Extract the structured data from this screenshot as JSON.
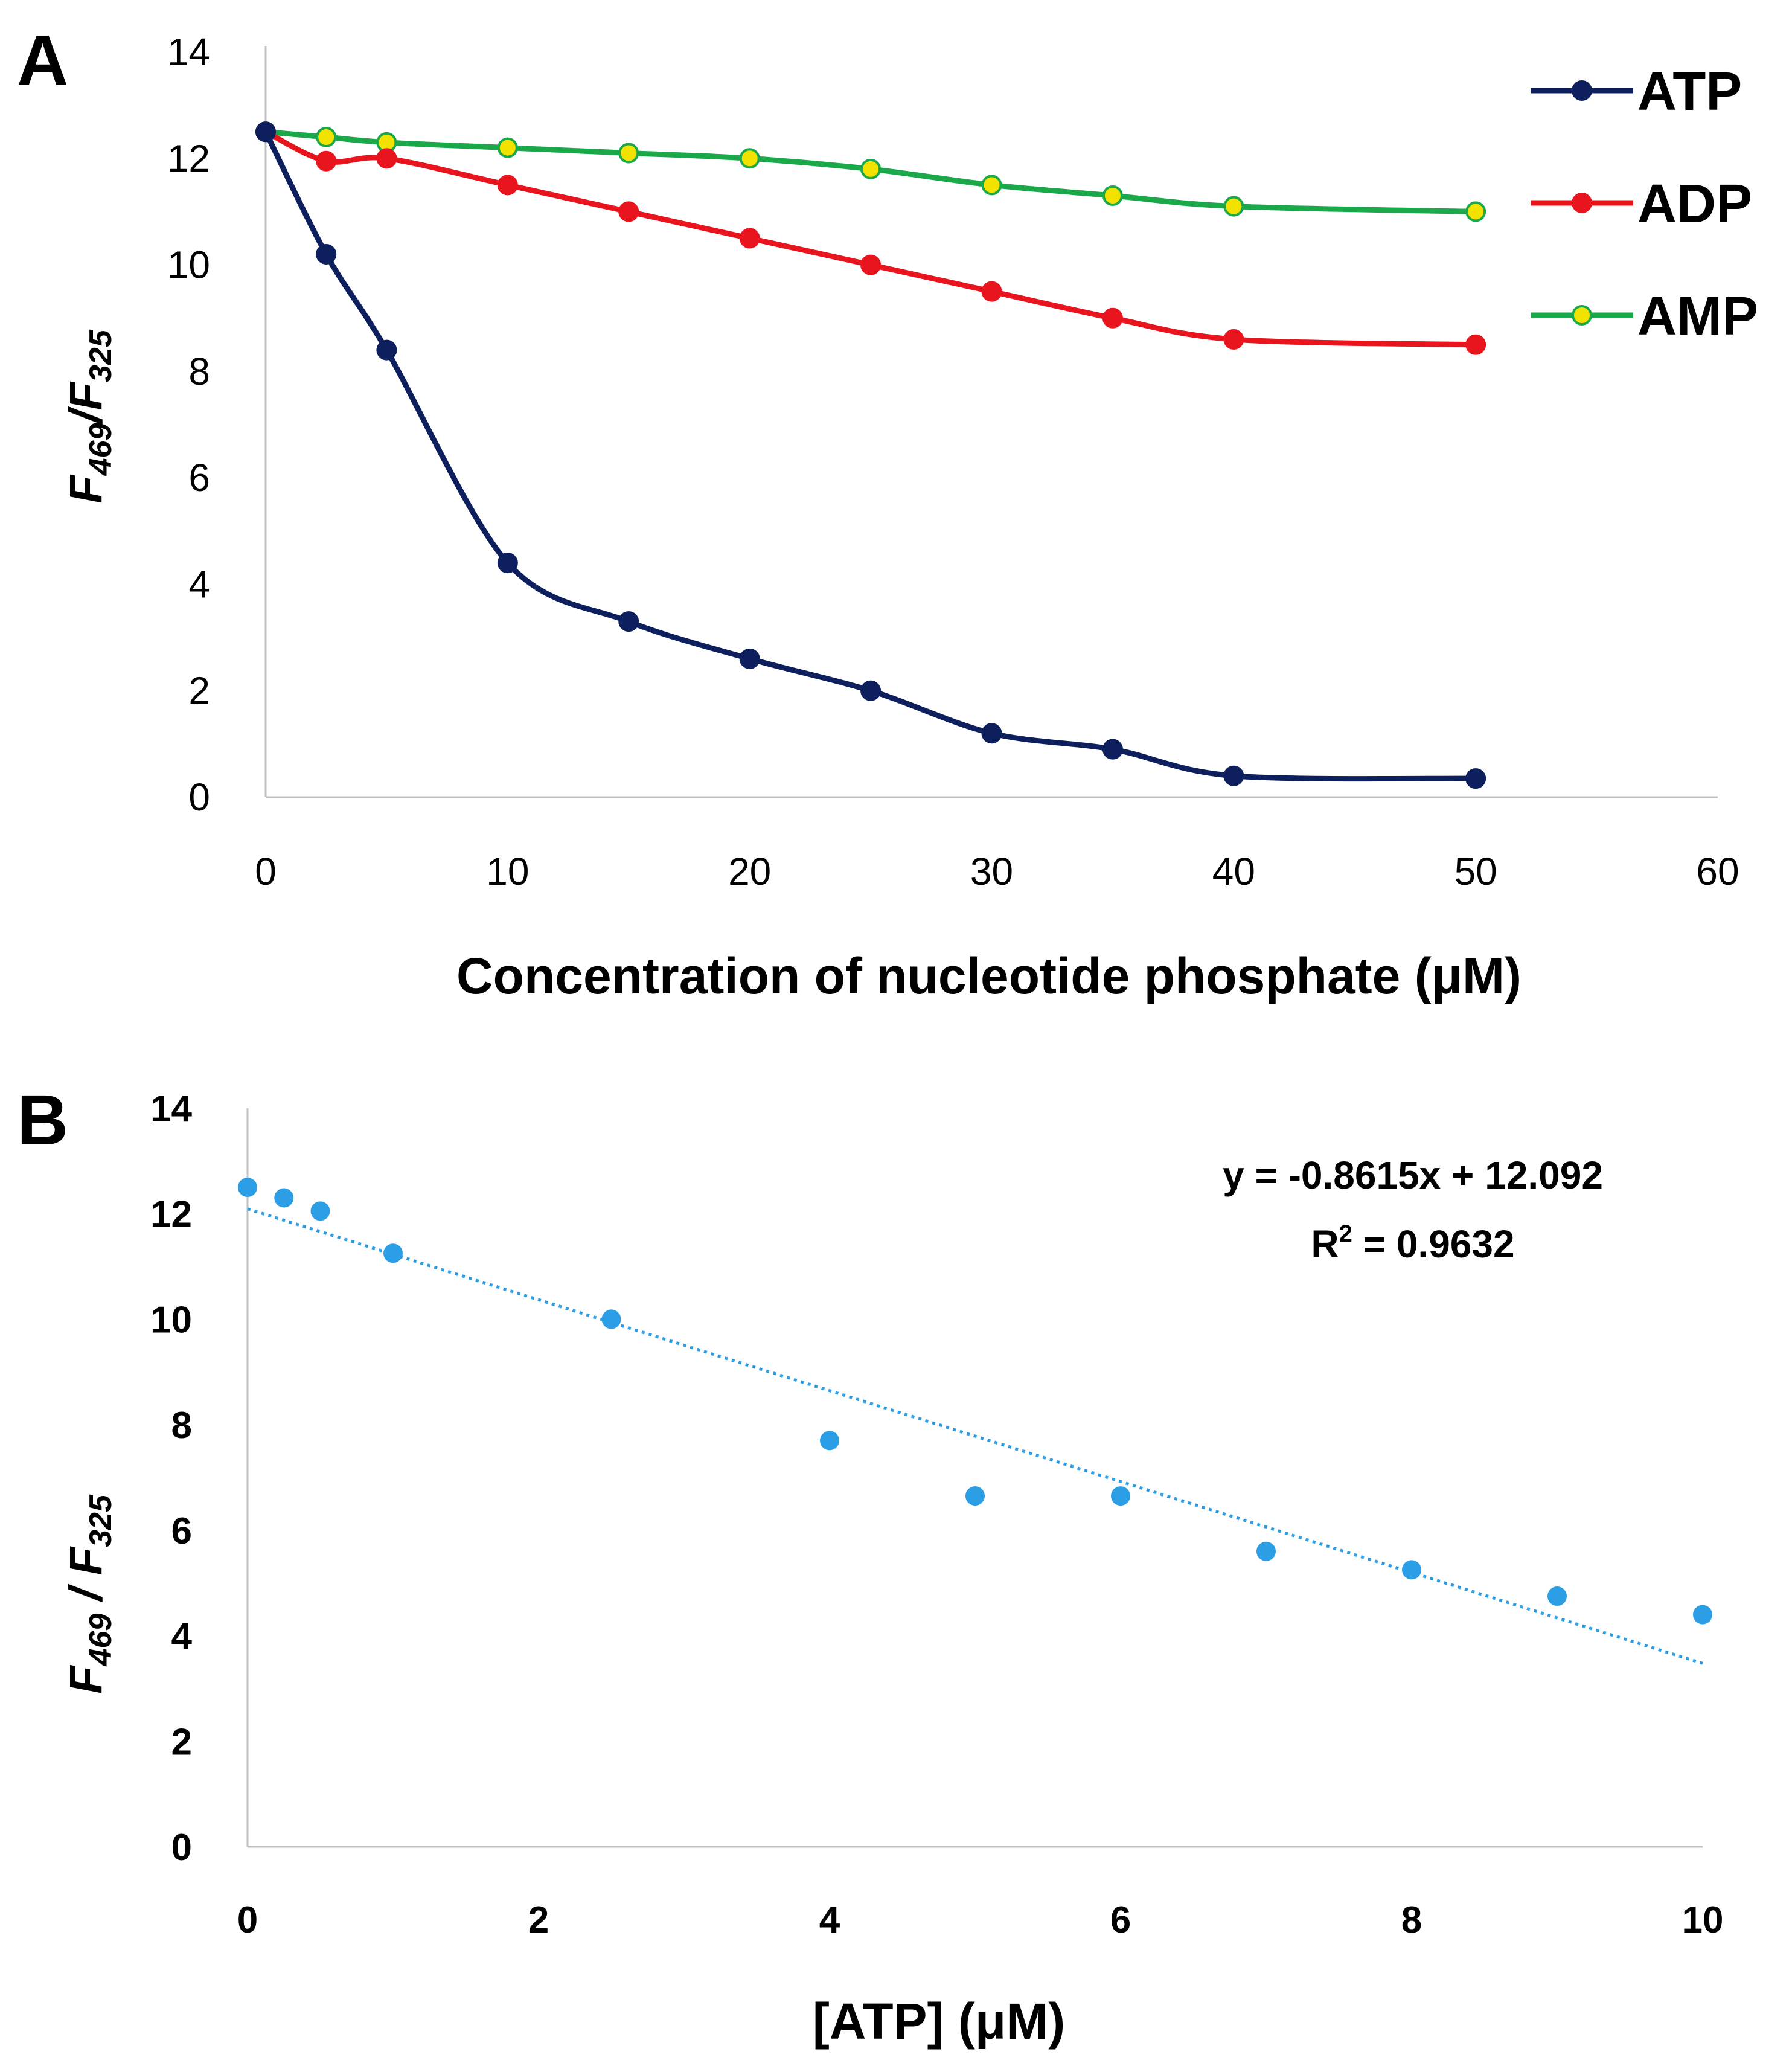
{
  "chart_data": [
    {
      "panel": "A",
      "type": "line",
      "xlabel": "Concentration of nucleotide phosphate (μM)",
      "ylabel": "F469/F325",
      "ylabel_parts": [
        "F",
        "469",
        "/",
        "F",
        "325"
      ],
      "xlim": [
        0,
        60
      ],
      "ylim": [
        0,
        14
      ],
      "xticks": [
        "0",
        "10",
        "20",
        "30",
        "40",
        "50",
        "60"
      ],
      "yticks": [
        "0",
        "2",
        "4",
        "6",
        "8",
        "10",
        "12",
        "14"
      ],
      "legend_position": "top-right",
      "series": [
        {
          "name": "ATP",
          "color": "#0d1f5c",
          "marker_color": "#0d1f5c",
          "x": [
            0,
            2.5,
            5,
            10,
            15,
            20,
            25,
            30,
            35,
            40,
            50
          ],
          "values": [
            12.5,
            10.2,
            8.4,
            4.4,
            3.3,
            2.6,
            2.0,
            1.2,
            0.9,
            0.4,
            0.35
          ]
        },
        {
          "name": "ADP",
          "color": "#e8141e",
          "marker_color": "#e8141e",
          "x": [
            0,
            2.5,
            5,
            10,
            15,
            20,
            25,
            30,
            35,
            40,
            50
          ],
          "values": [
            12.5,
            11.95,
            12.0,
            11.5,
            11.0,
            10.5,
            10.0,
            9.5,
            9.0,
            8.6,
            8.5
          ]
        },
        {
          "name": "AMP",
          "color": "#1aa84a",
          "marker_color": "#f2e200",
          "x": [
            0,
            2.5,
            5,
            10,
            15,
            20,
            25,
            30,
            35,
            40,
            50
          ],
          "values": [
            12.5,
            12.4,
            12.3,
            12.2,
            12.1,
            12.0,
            11.8,
            11.5,
            11.3,
            11.1,
            11.0
          ]
        }
      ]
    },
    {
      "panel": "B",
      "type": "scatter",
      "xlabel": "[ATP] (μM)",
      "ylabel": "F469 / F325",
      "ylabel_parts": [
        "F",
        "469",
        " / ",
        "F",
        "325"
      ],
      "xlim": [
        0,
        10
      ],
      "ylim": [
        0,
        14
      ],
      "xticks": [
        "0",
        "2",
        "4",
        "6",
        "8",
        "10"
      ],
      "yticks": [
        "0",
        "2",
        "4",
        "6",
        "8",
        "10",
        "12",
        "14"
      ],
      "point_color": "#2c9ee6",
      "trendline_color": "#2c9ee6",
      "x": [
        0,
        0.25,
        0.5,
        1,
        2.5,
        4,
        5,
        6,
        7,
        8,
        9,
        10
      ],
      "values": [
        12.5,
        12.3,
        12.05,
        11.25,
        10.0,
        7.7,
        6.65,
        6.65,
        5.6,
        5.25,
        4.75,
        4.4
      ],
      "trendline": {
        "slope": -0.8615,
        "intercept": 12.092,
        "x": [
          0,
          10
        ]
      },
      "equation_text": "y = -0.8615x + 12.092",
      "r2_label": "R",
      "r2_exponent": "2",
      "r2_value_text": " = 0.9632"
    }
  ],
  "panels": {
    "a_label": "A",
    "b_label": "B"
  }
}
